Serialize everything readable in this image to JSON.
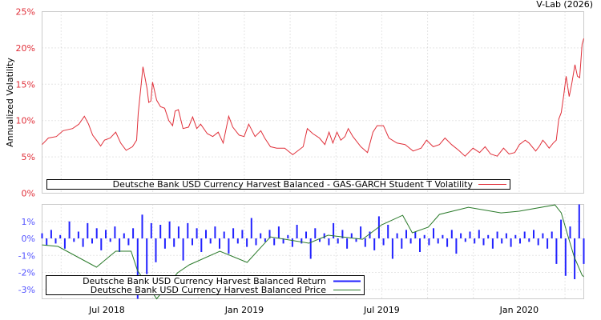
{
  "credit": "V-Lab (2026)",
  "chart_data": [
    {
      "type": "line",
      "title": "",
      "ylabel": "Annualized Volatility",
      "xlabel": "",
      "ylim": [
        0,
        25
      ],
      "xlim": [
        2018.264,
        2020.235
      ],
      "yticks": [
        0,
        5,
        10,
        15,
        20,
        25
      ],
      "ytick_labels": [
        "0%",
        "5%",
        "10%",
        "15%",
        "20%",
        "25%"
      ],
      "grid": true,
      "legend_position": "bottom",
      "series": [
        {
          "name": "Deutsche Bank USD Currency Harvest Balanced - GAS-GARCH Student T Volatility",
          "color": "#e0303a",
          "x": [
            2018.264,
            2018.287,
            2018.316,
            2018.34,
            2018.375,
            2018.398,
            2018.418,
            2018.433,
            2018.448,
            2018.462,
            2018.477,
            2018.491,
            2018.512,
            2018.532,
            2018.55,
            2018.57,
            2018.593,
            2018.608,
            2018.614,
            2018.631,
            2018.646,
            2018.652,
            2018.66,
            2018.666,
            2018.681,
            2018.695,
            2018.71,
            2018.725,
            2018.739,
            2018.748,
            2018.76,
            2018.777,
            2018.797,
            2018.812,
            2018.827,
            2018.841,
            2018.865,
            2018.885,
            2018.905,
            2018.923,
            2018.943,
            2018.958,
            2018.981,
            2018.999,
            2019.016,
            2019.039,
            2019.06,
            2019.074,
            2019.095,
            2019.118,
            2019.147,
            2019.176,
            2019.214,
            2019.229,
            2019.249,
            2019.273,
            2019.293,
            2019.308,
            2019.322,
            2019.337,
            2019.351,
            2019.366,
            2019.378,
            2019.395,
            2019.424,
            2019.448,
            2019.468,
            2019.483,
            2019.506,
            2019.526,
            2019.555,
            2019.585,
            2019.614,
            2019.643,
            2019.663,
            2019.687,
            2019.71,
            2019.73,
            2019.754,
            2019.78,
            2019.803,
            2019.832,
            2019.856,
            2019.876,
            2019.896,
            2019.92,
            2019.943,
            2019.963,
            2019.984,
            2020.001,
            2020.022,
            2020.036,
            2020.06,
            2020.074,
            2020.086,
            2020.095,
            2020.109,
            2020.124,
            2020.135,
            2020.144,
            2020.153,
            2020.162,
            2020.171,
            2020.182,
            2020.191,
            2020.203,
            2020.212,
            2020.22,
            2020.229,
            2020.235
          ],
          "y": [
            6.7,
            7.6,
            7.8,
            8.6,
            8.9,
            9.5,
            10.6,
            9.5,
            8.0,
            7.3,
            6.5,
            7.3,
            7.6,
            8.4,
            6.9,
            5.9,
            6.4,
            7.3,
            11.0,
            17.4,
            14.4,
            12.5,
            12.7,
            15.3,
            12.8,
            11.9,
            11.7,
            10.0,
            9.3,
            11.3,
            11.5,
            8.9,
            9.1,
            10.5,
            8.9,
            9.5,
            8.2,
            7.8,
            8.4,
            6.9,
            10.6,
            9.1,
            8.0,
            7.8,
            9.5,
            7.8,
            8.6,
            7.6,
            6.4,
            6.2,
            6.2,
            5.3,
            6.4,
            8.9,
            8.2,
            7.6,
            6.7,
            8.4,
            6.9,
            8.4,
            7.3,
            7.8,
            8.9,
            7.8,
            6.4,
            5.6,
            8.4,
            9.3,
            9.3,
            7.6,
            6.9,
            6.7,
            5.8,
            6.2,
            7.3,
            6.4,
            6.7,
            7.6,
            6.7,
            5.9,
            5.1,
            6.2,
            5.6,
            6.4,
            5.4,
            5.1,
            6.2,
            5.4,
            5.6,
            6.7,
            7.3,
            6.9,
            5.8,
            6.5,
            7.3,
            6.9,
            6.2,
            6.9,
            7.3,
            10.2,
            11.1,
            13.5,
            16.1,
            13.3,
            15.0,
            17.7,
            16.1,
            15.9,
            20.5,
            21.3
          ]
        }
      ]
    },
    {
      "type": "bar+line",
      "title": "",
      "ylabel": "",
      "xlabel": "",
      "ylim": [
        -3.55,
        2.0
      ],
      "xlim": [
        2018.264,
        2020.235
      ],
      "yticks": [
        -3,
        -2,
        -1,
        0,
        1
      ],
      "ytick_labels": [
        "-3%",
        "-2%",
        "-1%",
        "0%",
        "1%"
      ],
      "xticks": [
        2018.5,
        2019.0,
        2019.5,
        2020.0
      ],
      "xtick_labels": [
        "Jul 2018",
        "Jan 2019",
        "Jul 2019",
        "Jan 2020"
      ],
      "grid": true,
      "legend_position": "bottom-left",
      "series": [
        {
          "name": "Deutsche Bank USD Currency Harvest Balanced Return",
          "type": "bar",
          "color": "#2222ff",
          "x_start": 2018.264,
          "x_end": 2020.235,
          "values": [
            0.3,
            -0.4,
            0.5,
            -0.3,
            0.2,
            -0.6,
            1.0,
            -0.2,
            0.4,
            -0.5,
            0.9,
            -0.3,
            0.6,
            -0.7,
            0.5,
            -0.2,
            0.7,
            -0.8,
            0.3,
            -0.4,
            0.6,
            -3.6,
            1.4,
            -2.1,
            0.9,
            -1.4,
            0.8,
            -0.6,
            1.0,
            -0.5,
            0.7,
            -1.3,
            0.9,
            -0.4,
            0.6,
            -0.8,
            0.5,
            -0.3,
            0.7,
            -0.6,
            0.4,
            -0.9,
            0.6,
            -0.3,
            0.5,
            -0.5,
            1.2,
            -0.4,
            0.3,
            -0.2,
            0.5,
            -0.4,
            0.7,
            -0.3,
            0.2,
            -0.5,
            0.8,
            -0.3,
            0.4,
            -1.2,
            0.6,
            -0.2,
            0.3,
            -0.4,
            0.9,
            -0.3,
            0.5,
            -0.6,
            0.3,
            -0.2,
            0.7,
            -0.5,
            0.4,
            -0.7,
            1.3,
            -0.4,
            0.8,
            -1.2,
            0.3,
            -0.6,
            0.5,
            -0.3,
            0.4,
            -0.8,
            0.2,
            -0.4,
            0.6,
            -0.3,
            0.2,
            -0.5,
            0.5,
            -0.9,
            0.3,
            -0.2,
            0.4,
            -0.3,
            0.5,
            -0.4,
            0.2,
            -0.6,
            0.4,
            -0.3,
            0.3,
            -0.5,
            0.2,
            -0.3,
            0.4,
            -0.2,
            0.5,
            -0.4,
            0.3,
            -0.6,
            0.4,
            -1.5,
            1.1,
            -2.2,
            0.7,
            -2.4,
            2.1,
            -1.5
          ]
        },
        {
          "name": "Deutsche Bank USD Currency Harvest Balanced Price",
          "type": "line",
          "color": "#2a7a2a",
          "note_scale": "plotted on return axis",
          "x": [
            2018.264,
            2018.322,
            2018.392,
            2018.462,
            2018.532,
            2018.588,
            2018.611,
            2018.681,
            2018.757,
            2018.8,
            2018.911,
            2019.01,
            2019.095,
            2019.235,
            2019.305,
            2019.43,
            2019.5,
            2019.576,
            2019.611,
            2019.669,
            2019.71,
            2019.815,
            2019.934,
            2020.0,
            2020.13,
            2020.153,
            2020.174,
            2020.2,
            2020.229,
            2020.235
          ],
          "y": [
            -0.38,
            -0.47,
            -1.08,
            -1.69,
            -0.75,
            -0.75,
            -1.88,
            -3.66,
            -2.02,
            -1.55,
            -0.75,
            -1.41,
            0.09,
            -0.28,
            0.19,
            -0.05,
            0.8,
            1.36,
            0.33,
            0.66,
            1.41,
            1.83,
            1.5,
            1.6,
            1.97,
            1.5,
            0.33,
            -1.08,
            -2.16,
            -2.25
          ]
        }
      ]
    }
  ]
}
